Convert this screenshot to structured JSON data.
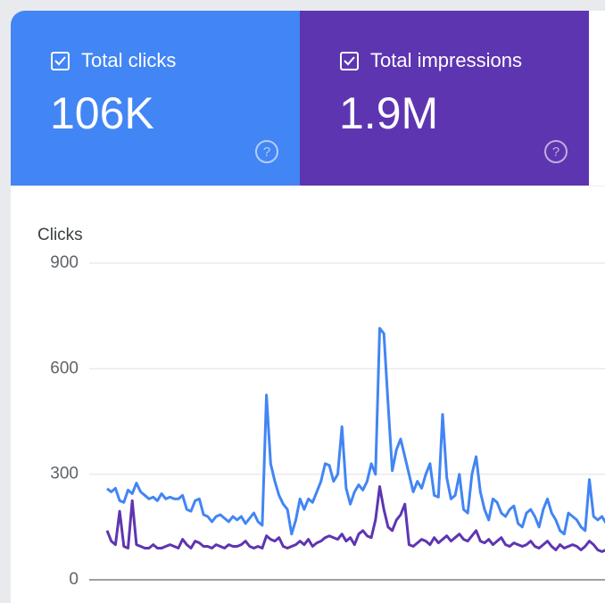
{
  "cards": [
    {
      "label": "Total clicks",
      "value": "106K",
      "color": "#4285f4"
    },
    {
      "label": "Total impressions",
      "value": "1.9M",
      "color": "#5e35b1"
    }
  ],
  "chart_data": {
    "type": "line",
    "y_label": "Clicks",
    "ylim": [
      0,
      900
    ],
    "yticks": [
      0,
      300,
      600,
      900
    ],
    "grid": true,
    "series": [
      {
        "color": "#4285f4",
        "values": [
          259,
          250,
          260,
          225,
          220,
          255,
          245,
          275,
          250,
          240,
          230,
          235,
          225,
          245,
          230,
          235,
          230,
          230,
          240,
          200,
          195,
          225,
          230,
          185,
          180,
          165,
          180,
          185,
          175,
          165,
          180,
          170,
          180,
          160,
          175,
          190,
          165,
          155,
          525,
          330,
          280,
          240,
          215,
          200,
          130,
          170,
          230,
          200,
          230,
          220,
          250,
          280,
          330,
          325,
          280,
          300,
          435,
          260,
          215,
          250,
          270,
          255,
          280,
          330,
          300,
          715,
          700,
          500,
          310,
          370,
          400,
          350,
          300,
          250,
          280,
          260,
          300,
          330,
          240,
          235,
          470,
          290,
          230,
          240,
          300,
          200,
          190,
          300,
          350,
          250,
          200,
          170,
          230,
          220,
          190,
          180,
          200,
          210,
          160,
          150,
          190,
          200,
          180,
          150,
          200,
          230,
          190,
          170,
          140,
          130,
          190,
          180,
          170,
          150,
          140,
          285,
          180,
          170,
          180,
          160,
          175
        ]
      },
      {
        "color": "#5e35b1",
        "values": [
          140,
          110,
          100,
          195,
          95,
          90,
          225,
          100,
          95,
          90,
          90,
          100,
          90,
          90,
          95,
          100,
          95,
          90,
          115,
          100,
          90,
          110,
          105,
          95,
          95,
          90,
          100,
          95,
          90,
          100,
          95,
          95,
          100,
          110,
          95,
          90,
          95,
          90,
          125,
          115,
          110,
          120,
          95,
          90,
          95,
          100,
          110,
          100,
          115,
          95,
          105,
          110,
          120,
          125,
          120,
          115,
          130,
          110,
          120,
          100,
          130,
          140,
          125,
          120,
          170,
          265,
          200,
          150,
          140,
          170,
          185,
          215,
          100,
          95,
          105,
          115,
          110,
          100,
          120,
          105,
          115,
          125,
          110,
          120,
          130,
          115,
          110,
          125,
          140,
          110,
          105,
          115,
          100,
          110,
          120,
          100,
          95,
          105,
          100,
          95,
          100,
          110,
          95,
          90,
          100,
          110,
          95,
          85,
          100,
          90,
          95,
          100,
          95,
          85,
          95,
          110,
          100,
          85,
          80,
          85,
          85
        ]
      }
    ]
  }
}
